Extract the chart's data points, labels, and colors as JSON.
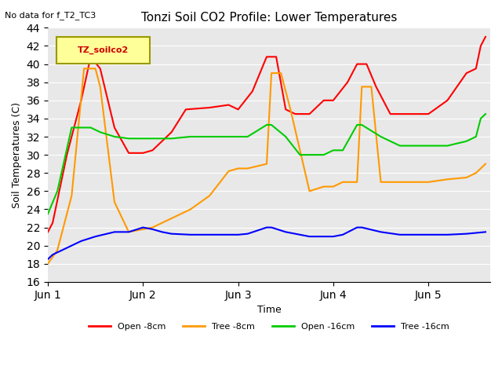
{
  "title": "Tonzi Soil CO2 Profile: Lower Temperatures",
  "subtitle": "No data for f_T2_TC3",
  "xlabel": "Time",
  "ylabel": "Soil Temperatures (C)",
  "ylim": [
    16,
    44
  ],
  "yticks": [
    16,
    18,
    20,
    22,
    24,
    26,
    28,
    30,
    32,
    34,
    36,
    38,
    40,
    42,
    44
  ],
  "background_color": "#e8e8e8",
  "legend_label": "TZ_soilco2",
  "legend_box_color": "#ffff99",
  "legend_box_border": "#999900",
  "series": {
    "open_8cm": {
      "label": "Open -8cm",
      "color": "#ff0000",
      "x": [
        0.0,
        0.05,
        0.2,
        0.35,
        0.45,
        0.55,
        0.7,
        0.85,
        1.0,
        1.1,
        1.2,
        1.3,
        1.45,
        1.7,
        1.9,
        2.0,
        2.15,
        2.3,
        2.4,
        2.5,
        2.6,
        2.75,
        2.9,
        3.0,
        3.15,
        3.25,
        3.35,
        3.45,
        3.6,
        3.8,
        4.0,
        4.2,
        4.4,
        4.5,
        4.55,
        4.6
      ],
      "y": [
        21.5,
        22.5,
        30.0,
        36.0,
        40.8,
        39.5,
        33.0,
        30.2,
        30.2,
        30.5,
        31.5,
        32.5,
        35.0,
        35.2,
        35.5,
        35.0,
        37.0,
        40.8,
        40.8,
        35.0,
        34.5,
        34.5,
        36.0,
        36.0,
        38.0,
        40.0,
        40.0,
        37.5,
        34.5,
        34.5,
        34.5,
        36.0,
        39.0,
        39.5,
        42.0,
        43.0
      ]
    },
    "tree_8cm": {
      "label": "Tree -8cm",
      "color": "#ff9900",
      "x": [
        0.0,
        0.1,
        0.25,
        0.38,
        0.5,
        0.55,
        0.7,
        0.85,
        1.0,
        1.1,
        1.3,
        1.5,
        1.7,
        1.9,
        2.0,
        2.1,
        2.3,
        2.35,
        2.45,
        2.55,
        2.75,
        2.9,
        3.0,
        3.1,
        3.25,
        3.3,
        3.4,
        3.5,
        3.7,
        4.0,
        4.2,
        4.4,
        4.5,
        4.6
      ],
      "y": [
        18.0,
        19.5,
        25.5,
        39.5,
        39.5,
        37.5,
        24.8,
        21.5,
        21.8,
        22.0,
        23.0,
        24.0,
        25.5,
        28.2,
        28.5,
        28.5,
        29.0,
        39.0,
        39.0,
        35.0,
        26.0,
        26.5,
        26.5,
        27.0,
        27.0,
        37.5,
        37.5,
        27.0,
        27.0,
        27.0,
        27.3,
        27.5,
        28.0,
        29.0
      ]
    },
    "open_16cm": {
      "label": "Open -16cm",
      "color": "#00cc00",
      "x": [
        0.0,
        0.1,
        0.25,
        0.35,
        0.45,
        0.55,
        0.7,
        0.85,
        1.0,
        1.1,
        1.3,
        1.5,
        1.7,
        1.9,
        2.0,
        2.1,
        2.3,
        2.35,
        2.5,
        2.65,
        2.75,
        2.9,
        3.0,
        3.1,
        3.25,
        3.3,
        3.5,
        3.7,
        4.0,
        4.2,
        4.4,
        4.5,
        4.55,
        4.6
      ],
      "y": [
        23.5,
        26.0,
        33.0,
        33.0,
        33.0,
        32.5,
        32.0,
        31.8,
        31.8,
        31.8,
        31.8,
        32.0,
        32.0,
        32.0,
        32.0,
        32.0,
        33.3,
        33.3,
        32.0,
        30.0,
        30.0,
        30.0,
        30.5,
        30.5,
        33.3,
        33.3,
        32.0,
        31.0,
        31.0,
        31.0,
        31.5,
        32.0,
        34.0,
        34.5
      ]
    },
    "tree_16cm": {
      "label": "Tree -16cm",
      "color": "#0000ff",
      "x": [
        0.0,
        0.05,
        0.15,
        0.25,
        0.35,
        0.5,
        0.7,
        0.85,
        1.0,
        1.1,
        1.2,
        1.3,
        1.5,
        1.7,
        1.9,
        2.0,
        2.1,
        2.3,
        2.35,
        2.5,
        2.65,
        2.75,
        2.9,
        3.0,
        3.1,
        3.25,
        3.3,
        3.5,
        3.7,
        4.0,
        4.2,
        4.4,
        4.5,
        4.6
      ],
      "y": [
        18.5,
        19.0,
        19.5,
        20.0,
        20.5,
        21.0,
        21.5,
        21.5,
        22.0,
        21.8,
        21.5,
        21.3,
        21.2,
        21.2,
        21.2,
        21.2,
        21.3,
        22.0,
        22.0,
        21.5,
        21.2,
        21.0,
        21.0,
        21.0,
        21.2,
        22.0,
        22.0,
        21.5,
        21.2,
        21.2,
        21.2,
        21.3,
        21.4,
        21.5
      ]
    }
  },
  "xtick_positions": [
    0,
    1,
    2,
    3,
    4
  ],
  "xtick_labels": [
    "Jun 1",
    "Jun 2",
    "Jun 3",
    "Jun 4",
    "Jun 5"
  ],
  "xlim": [
    0,
    4.65
  ]
}
